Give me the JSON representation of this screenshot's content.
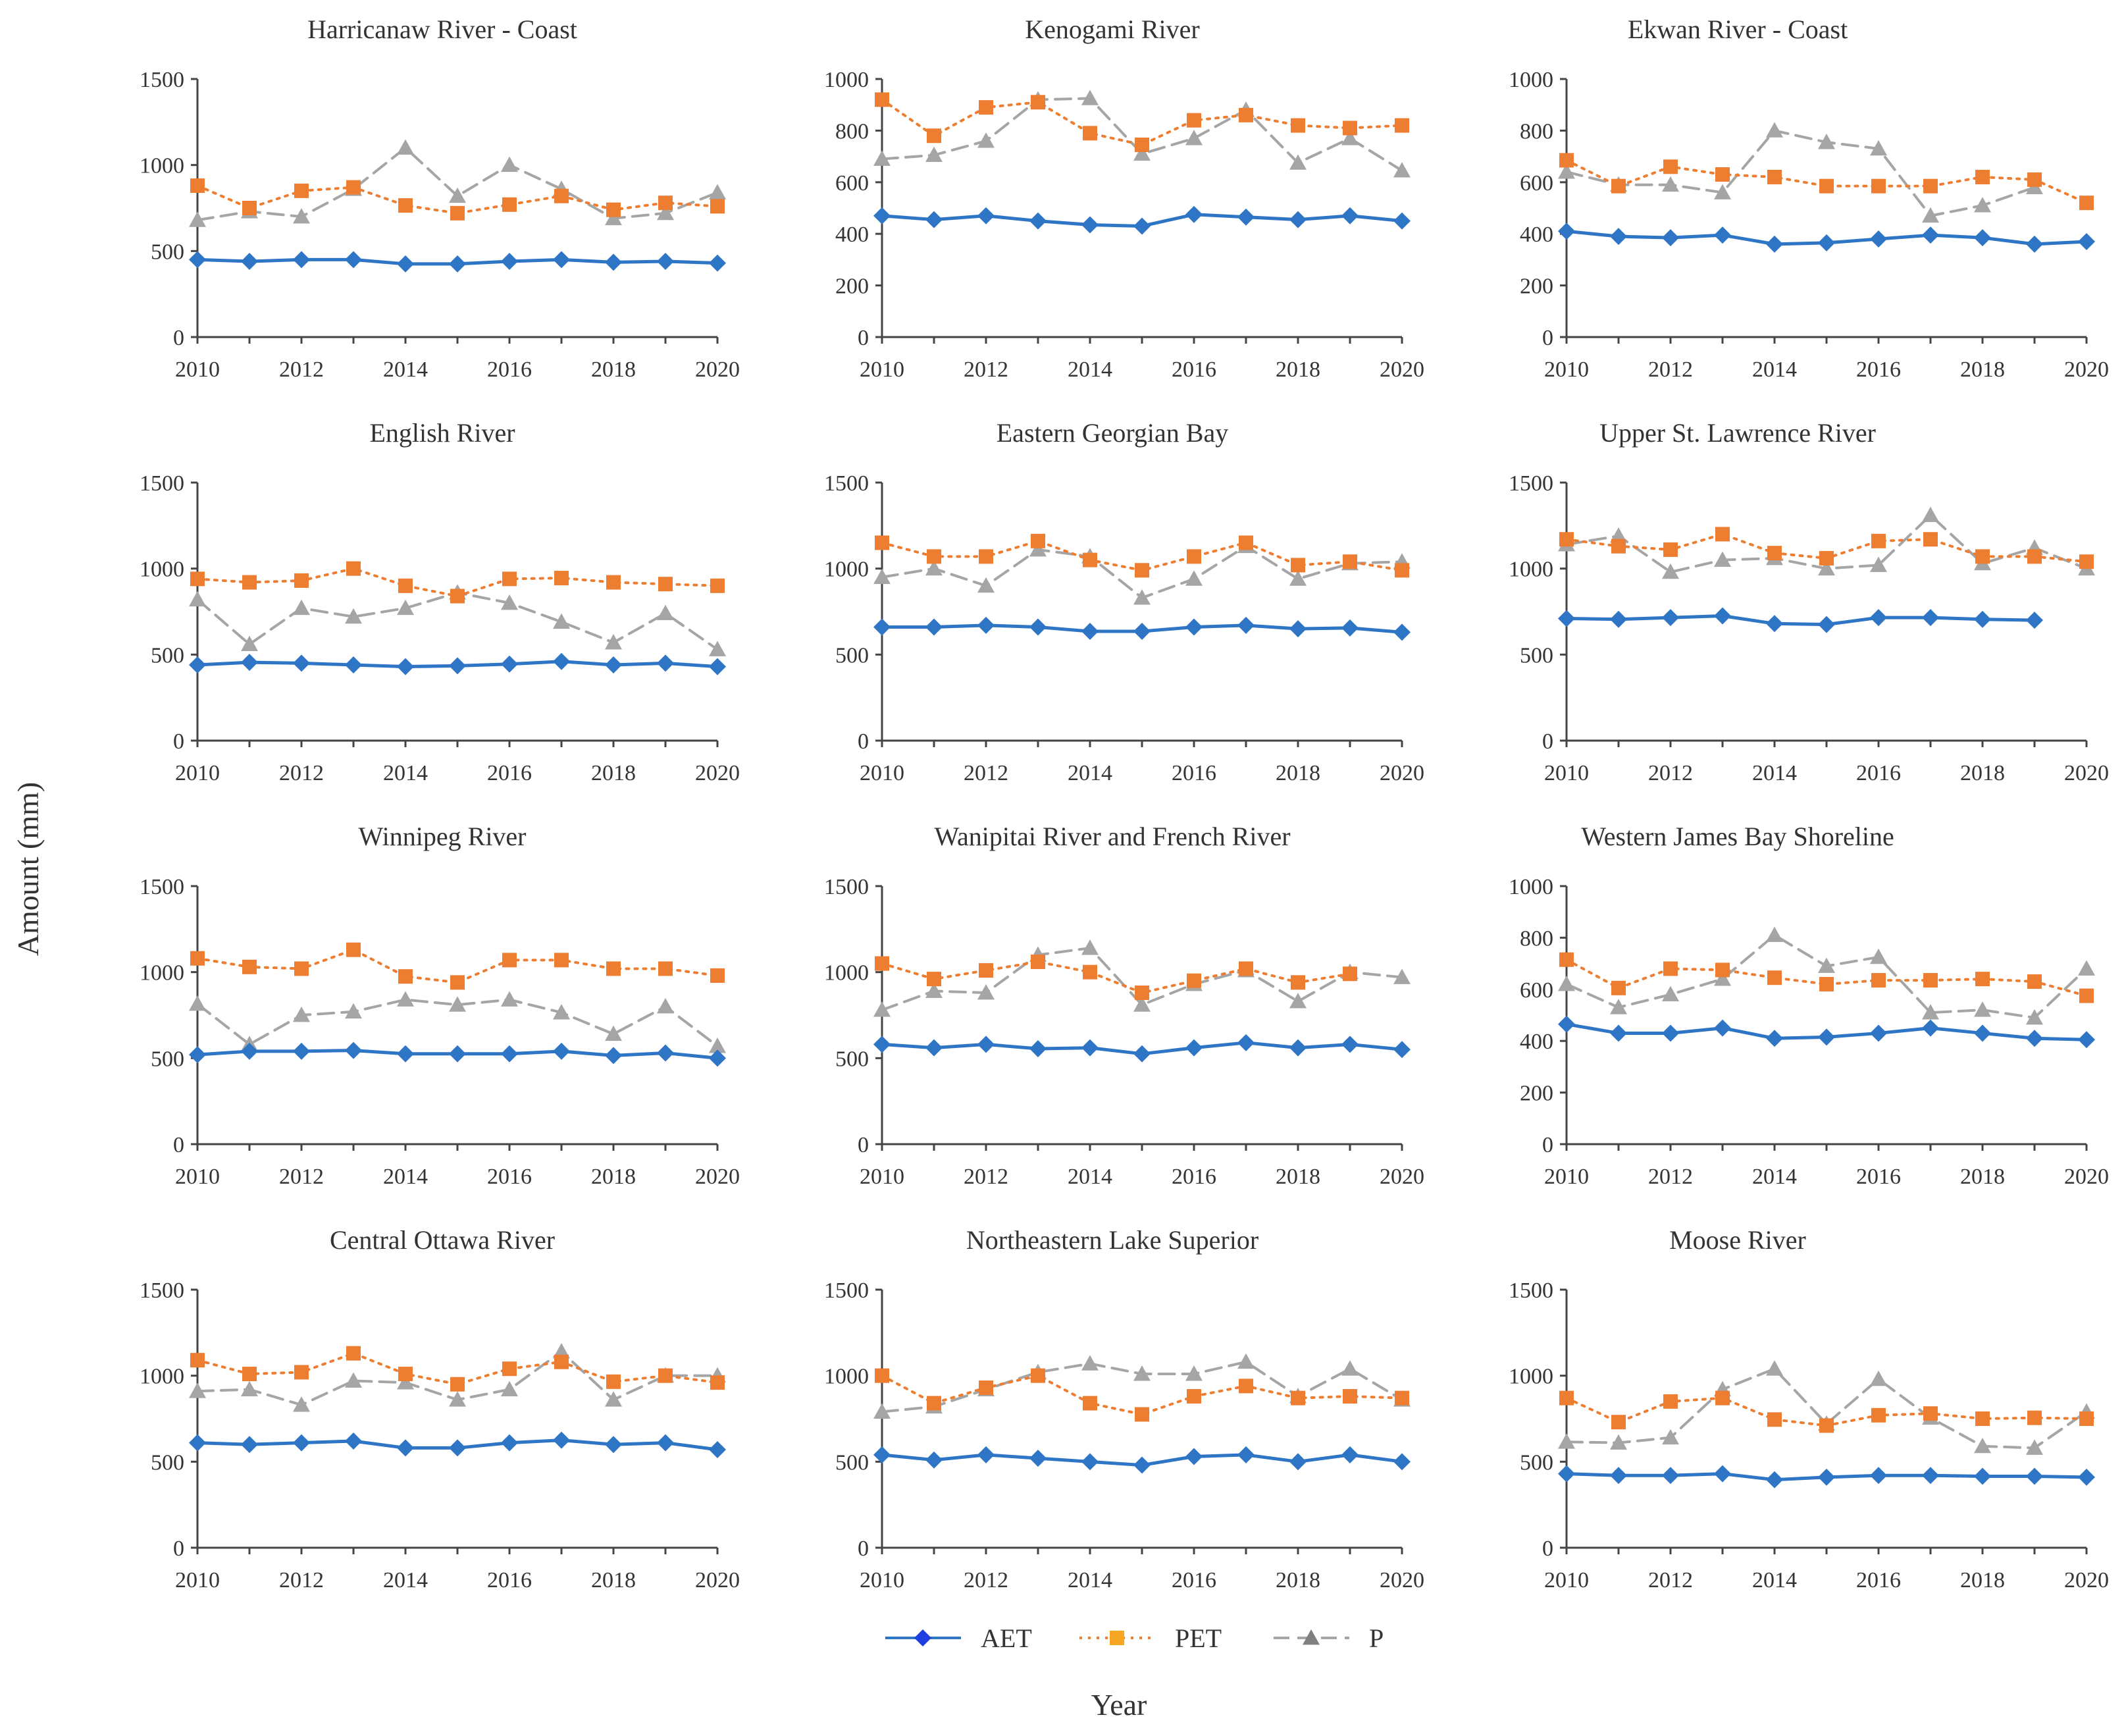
{
  "figure": {
    "y_axis_title": "Amount (mm)",
    "x_axis_title": "Year"
  },
  "legend": [
    {
      "name": "AET",
      "color": "#2e75c6",
      "marker_color": "#1f3fe0",
      "marker": "diamond",
      "dash": "solid"
    },
    {
      "name": "PET",
      "color": "#ed7d31",
      "marker_color": "#f5a623",
      "marker": "square",
      "dash": "dotted"
    },
    {
      "name": "P",
      "color": "#a5a5a5",
      "marker_color": "#808080",
      "marker": "triangle",
      "dash": "dashed"
    }
  ],
  "chart_data": [
    {
      "type": "line",
      "title": "Harricanaw River - Coast",
      "x": [
        2010,
        2011,
        2012,
        2013,
        2014,
        2015,
        2016,
        2017,
        2018,
        2019,
        2020
      ],
      "xticks": [
        2010,
        2012,
        2014,
        2016,
        2018,
        2020
      ],
      "ylim": [
        0,
        1500
      ],
      "yticks": [
        0,
        500,
        1000,
        1500
      ],
      "series": [
        {
          "name": "AET",
          "values": [
            450,
            440,
            450,
            450,
            425,
            425,
            440,
            450,
            435,
            440,
            430
          ]
        },
        {
          "name": "PET",
          "values": [
            880,
            750,
            850,
            870,
            765,
            720,
            770,
            820,
            740,
            780,
            760
          ]
        },
        {
          "name": "P",
          "values": [
            680,
            730,
            700,
            860,
            1100,
            820,
            1000,
            860,
            690,
            720,
            840
          ]
        }
      ]
    },
    {
      "type": "line",
      "title": "Kenogami River",
      "x": [
        2010,
        2011,
        2012,
        2013,
        2014,
        2015,
        2016,
        2017,
        2018,
        2019,
        2020
      ],
      "xticks": [
        2010,
        2012,
        2014,
        2016,
        2018,
        2020
      ],
      "ylim": [
        0,
        1000
      ],
      "yticks": [
        0,
        200,
        400,
        600,
        800,
        1000
      ],
      "series": [
        {
          "name": "AET",
          "values": [
            470,
            455,
            470,
            450,
            435,
            430,
            475,
            465,
            455,
            470,
            450
          ]
        },
        {
          "name": "PET",
          "values": [
            920,
            780,
            890,
            910,
            790,
            745,
            840,
            860,
            820,
            810,
            820
          ]
        },
        {
          "name": "P",
          "values": [
            690,
            705,
            760,
            920,
            925,
            710,
            770,
            880,
            675,
            770,
            645
          ]
        }
      ]
    },
    {
      "type": "line",
      "title": "Ekwan River - Coast",
      "x": [
        2010,
        2011,
        2012,
        2013,
        2014,
        2015,
        2016,
        2017,
        2018,
        2019,
        2020
      ],
      "xticks": [
        2010,
        2012,
        2014,
        2016,
        2018,
        2020
      ],
      "ylim": [
        0,
        1000
      ],
      "yticks": [
        0,
        200,
        400,
        600,
        800,
        1000
      ],
      "series": [
        {
          "name": "AET",
          "values": [
            410,
            390,
            385,
            395,
            360,
            365,
            380,
            395,
            385,
            360,
            370
          ]
        },
        {
          "name": "PET",
          "values": [
            685,
            585,
            660,
            630,
            620,
            585,
            585,
            585,
            620,
            610,
            520
          ]
        },
        {
          "name": "P",
          "values": [
            640,
            590,
            590,
            560,
            800,
            755,
            730,
            470,
            510,
            580,
            null
          ]
        }
      ]
    },
    {
      "type": "line",
      "title": "English River",
      "x": [
        2010,
        2011,
        2012,
        2013,
        2014,
        2015,
        2016,
        2017,
        2018,
        2019,
        2020
      ],
      "xticks": [
        2010,
        2012,
        2014,
        2016,
        2018,
        2020
      ],
      "ylim": [
        0,
        1500
      ],
      "yticks": [
        0,
        500,
        1000,
        1500
      ],
      "series": [
        {
          "name": "AET",
          "values": [
            440,
            455,
            450,
            440,
            430,
            435,
            445,
            460,
            440,
            450,
            430
          ]
        },
        {
          "name": "PET",
          "values": [
            940,
            920,
            930,
            1000,
            900,
            840,
            940,
            945,
            920,
            910,
            900
          ]
        },
        {
          "name": "P",
          "values": [
            820,
            560,
            770,
            720,
            770,
            860,
            800,
            690,
            570,
            740,
            530
          ]
        }
      ]
    },
    {
      "type": "line",
      "title": "Eastern Georgian Bay",
      "x": [
        2010,
        2011,
        2012,
        2013,
        2014,
        2015,
        2016,
        2017,
        2018,
        2019,
        2020
      ],
      "xticks": [
        2010,
        2012,
        2014,
        2016,
        2018,
        2020
      ],
      "ylim": [
        0,
        1500
      ],
      "yticks": [
        0,
        500,
        1000,
        1500
      ],
      "series": [
        {
          "name": "AET",
          "values": [
            660,
            660,
            670,
            660,
            635,
            635,
            660,
            670,
            650,
            655,
            630
          ]
        },
        {
          "name": "PET",
          "values": [
            1150,
            1070,
            1070,
            1160,
            1050,
            990,
            1070,
            1150,
            1020,
            1040,
            990
          ]
        },
        {
          "name": "P",
          "values": [
            950,
            1000,
            900,
            1110,
            1070,
            830,
            940,
            1130,
            940,
            1030,
            1040
          ]
        }
      ]
    },
    {
      "type": "line",
      "title": "Upper St. Lawrence River",
      "x": [
        2010,
        2011,
        2012,
        2013,
        2014,
        2015,
        2016,
        2017,
        2018,
        2019,
        2020
      ],
      "xticks": [
        2010,
        2012,
        2014,
        2016,
        2018,
        2020
      ],
      "ylim": [
        0,
        1500
      ],
      "yticks": [
        0,
        500,
        1000,
        1500
      ],
      "series": [
        {
          "name": "AET",
          "values": [
            710,
            705,
            715,
            725,
            680,
            675,
            715,
            715,
            705,
            700,
            null
          ]
        },
        {
          "name": "PET",
          "values": [
            1170,
            1130,
            1110,
            1200,
            1090,
            1060,
            1160,
            1170,
            1070,
            1070,
            1040
          ]
        },
        {
          "name": "P",
          "values": [
            1140,
            1190,
            980,
            1050,
            1060,
            1000,
            1020,
            1310,
            1030,
            1120,
            1000
          ]
        }
      ]
    },
    {
      "type": "line",
      "title": "Winnipeg River",
      "x": [
        2010,
        2011,
        2012,
        2013,
        2014,
        2015,
        2016,
        2017,
        2018,
        2019,
        2020
      ],
      "xticks": [
        2010,
        2012,
        2014,
        2016,
        2018,
        2020
      ],
      "ylim": [
        0,
        1500
      ],
      "yticks": [
        0,
        500,
        1000,
        1500
      ],
      "series": [
        {
          "name": "AET",
          "values": [
            520,
            540,
            540,
            545,
            525,
            525,
            525,
            540,
            515,
            530,
            500
          ]
        },
        {
          "name": "PET",
          "values": [
            1080,
            1030,
            1020,
            1130,
            975,
            940,
            1070,
            1070,
            1020,
            1020,
            980
          ]
        },
        {
          "name": "P",
          "values": [
            815,
            580,
            750,
            770,
            840,
            810,
            840,
            765,
            640,
            800,
            570
          ]
        }
      ]
    },
    {
      "type": "line",
      "title": "Wanipitai River and French River",
      "x": [
        2010,
        2011,
        2012,
        2013,
        2014,
        2015,
        2016,
        2017,
        2018,
        2019,
        2020
      ],
      "xticks": [
        2010,
        2012,
        2014,
        2016,
        2018,
        2020
      ],
      "ylim": [
        0,
        1500
      ],
      "yticks": [
        0,
        500,
        1000,
        1500
      ],
      "series": [
        {
          "name": "AET",
          "values": [
            580,
            560,
            580,
            555,
            560,
            525,
            560,
            590,
            560,
            580,
            550
          ]
        },
        {
          "name": "PET",
          "values": [
            1050,
            960,
            1010,
            1060,
            1000,
            880,
            950,
            1020,
            940,
            990,
            null
          ]
        },
        {
          "name": "P",
          "values": [
            780,
            890,
            880,
            1100,
            1140,
            810,
            930,
            1010,
            830,
            1000,
            970
          ]
        }
      ]
    },
    {
      "type": "line",
      "title": "Western James Bay Shoreline",
      "x": [
        2010,
        2011,
        2012,
        2013,
        2014,
        2015,
        2016,
        2017,
        2018,
        2019,
        2020
      ],
      "xticks": [
        2010,
        2012,
        2014,
        2016,
        2018,
        2020
      ],
      "ylim": [
        0,
        1000
      ],
      "yticks": [
        0,
        200,
        400,
        600,
        800,
        1000
      ],
      "series": [
        {
          "name": "AET",
          "values": [
            465,
            430,
            430,
            450,
            410,
            415,
            430,
            450,
            430,
            410,
            405
          ]
        },
        {
          "name": "PET",
          "values": [
            715,
            605,
            680,
            675,
            645,
            620,
            635,
            635,
            640,
            630,
            575
          ]
        },
        {
          "name": "P",
          "values": [
            620,
            530,
            580,
            640,
            810,
            690,
            725,
            510,
            520,
            490,
            680
          ]
        }
      ]
    },
    {
      "type": "line",
      "title": "Central Ottawa River",
      "x": [
        2010,
        2011,
        2012,
        2013,
        2014,
        2015,
        2016,
        2017,
        2018,
        2019,
        2020
      ],
      "xticks": [
        2010,
        2012,
        2014,
        2016,
        2018,
        2020
      ],
      "ylim": [
        0,
        1500
      ],
      "yticks": [
        0,
        500,
        1000,
        1500
      ],
      "series": [
        {
          "name": "AET",
          "values": [
            610,
            600,
            610,
            620,
            580,
            580,
            610,
            625,
            600,
            610,
            570
          ]
        },
        {
          "name": "PET",
          "values": [
            1090,
            1010,
            1020,
            1130,
            1010,
            950,
            1040,
            1080,
            965,
            1000,
            960
          ]
        },
        {
          "name": "P",
          "values": [
            910,
            920,
            830,
            970,
            960,
            860,
            920,
            1140,
            860,
            1000,
            1000
          ]
        }
      ]
    },
    {
      "type": "line",
      "title": "Northeastern Lake Superior",
      "x": [
        2010,
        2011,
        2012,
        2013,
        2014,
        2015,
        2016,
        2017,
        2018,
        2019,
        2020
      ],
      "xticks": [
        2010,
        2012,
        2014,
        2016,
        2018,
        2020
      ],
      "ylim": [
        0,
        1500
      ],
      "yticks": [
        0,
        500,
        1000,
        1500
      ],
      "series": [
        {
          "name": "AET",
          "values": [
            540,
            510,
            540,
            520,
            500,
            480,
            530,
            540,
            500,
            540,
            500
          ]
        },
        {
          "name": "PET",
          "values": [
            1000,
            840,
            930,
            1000,
            840,
            775,
            880,
            940,
            870,
            880,
            870
          ]
        },
        {
          "name": "P",
          "values": [
            790,
            820,
            920,
            1020,
            1070,
            1010,
            1010,
            1080,
            880,
            1040,
            860
          ]
        }
      ]
    },
    {
      "type": "line",
      "title": "Moose River",
      "x": [
        2010,
        2011,
        2012,
        2013,
        2014,
        2015,
        2016,
        2017,
        2018,
        2019,
        2020
      ],
      "xticks": [
        2010,
        2012,
        2014,
        2016,
        2018,
        2020
      ],
      "ylim": [
        0,
        1500
      ],
      "yticks": [
        0,
        500,
        1000,
        1500
      ],
      "series": [
        {
          "name": "AET",
          "values": [
            430,
            420,
            420,
            430,
            395,
            410,
            420,
            420,
            415,
            415,
            410
          ]
        },
        {
          "name": "PET",
          "values": [
            870,
            730,
            850,
            870,
            745,
            710,
            770,
            780,
            750,
            755,
            750
          ]
        },
        {
          "name": "P",
          "values": [
            615,
            610,
            640,
            920,
            1040,
            720,
            980,
            755,
            590,
            580,
            790
          ]
        }
      ]
    }
  ]
}
